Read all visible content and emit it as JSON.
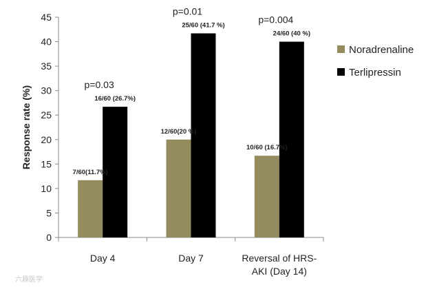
{
  "chart_data": {
    "type": "bar",
    "ylabel": "Response rate (%)",
    "ylim": [
      0,
      45
    ],
    "yticks": [
      "0",
      "5",
      "10",
      "15",
      "20",
      "25",
      "30",
      "35",
      "40",
      "45"
    ],
    "grid": false,
    "legend_position": "right",
    "categories": [
      {
        "lines": [
          "Day 4"
        ]
      },
      {
        "lines": [
          "Day 7"
        ]
      },
      {
        "lines": [
          "Reversal of HRS-",
          "AKI (Day 14)"
        ]
      }
    ],
    "series": [
      {
        "name": "Noradrenaline",
        "color": "#948b5f",
        "values": [
          11.7,
          20,
          16.7
        ],
        "labels": [
          "7/60(11.7%)",
          "12/60(20 %)",
          "10/60 (16.7%)"
        ]
      },
      {
        "name": "Terlipressin",
        "color": "#000000",
        "values": [
          26.7,
          41.7,
          40
        ],
        "labels": [
          "16/60 (26.7%)",
          "25/60 (41.7 %)",
          "24/60 (40 %)"
        ]
      }
    ],
    "p_values": [
      "p=0.03",
      "p=0.01",
      "p=0.004"
    ]
  },
  "watermark": "六趣医学"
}
